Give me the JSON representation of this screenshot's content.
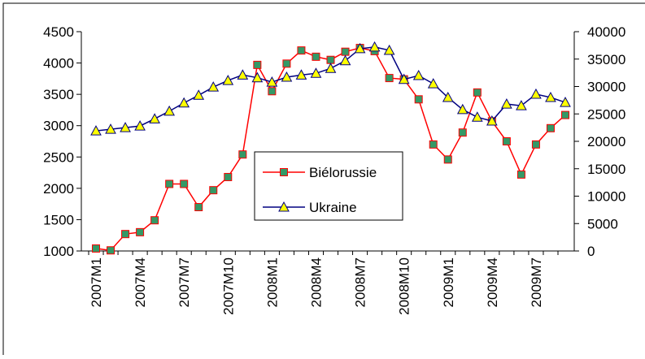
{
  "chart_data": {
    "type": "line",
    "categories": [
      "2007M1",
      null,
      null,
      "2007M4",
      null,
      null,
      "2007M7",
      null,
      null,
      "2007M10",
      null,
      null,
      "2008M1",
      null,
      null,
      "2008M4",
      null,
      null,
      "2008M7",
      null,
      null,
      "2008M10",
      null,
      null,
      "2009M1",
      null,
      null,
      "2009M4",
      null,
      null,
      "2009M7",
      null,
      null
    ],
    "series": [
      {
        "name": "Biélorussie",
        "color": "#ff0000",
        "marker_color": "#339966",
        "marker": "square",
        "values": [
          1040,
          1010,
          1270,
          1300,
          1490,
          2070,
          2070,
          1700,
          1970,
          2180,
          2540,
          3970,
          3550,
          3990,
          4200,
          4100,
          4050,
          4180,
          4240,
          4190,
          3760,
          3740,
          3420,
          2700,
          2460,
          2890,
          3530,
          3070,
          2750,
          2220,
          2700,
          2960,
          3170
        ]
      },
      {
        "name": "Ukraine",
        "color": "#000080",
        "marker_color": "#ffff00",
        "marker": "triangle",
        "axis": "y2",
        "values": [
          21900,
          22200,
          22500,
          22800,
          24100,
          25500,
          27000,
          28400,
          29900,
          31100,
          32100,
          31600,
          30800,
          31700,
          32100,
          32400,
          33300,
          34700,
          36900,
          37200,
          36600,
          31300,
          32000,
          30500,
          28000,
          25800,
          24400,
          23700,
          26800,
          26500,
          28600,
          28000,
          27100
        ]
      }
    ],
    "ylim": [
      1000,
      4500
    ],
    "yticks": [
      1000,
      1500,
      2000,
      2500,
      3000,
      3500,
      4000,
      4500
    ],
    "y2lim": [
      0,
      40000
    ],
    "y2ticks": [
      0,
      5000,
      10000,
      15000,
      20000,
      25000,
      30000,
      35000,
      40000
    ],
    "grid": false
  }
}
